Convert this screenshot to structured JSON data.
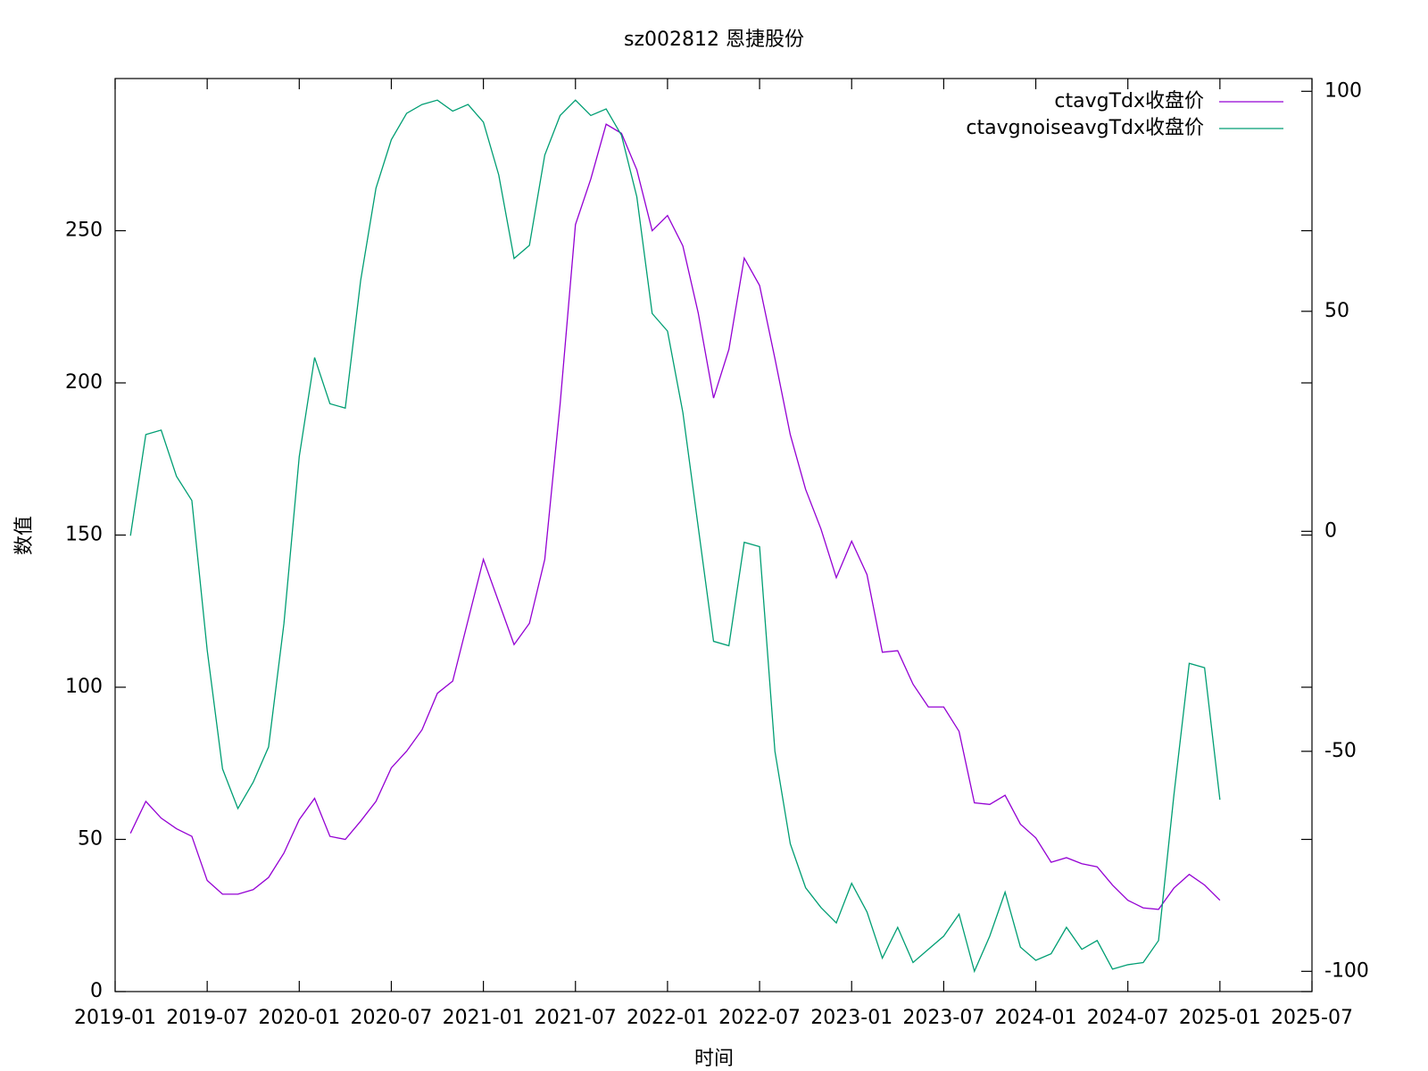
{
  "chart_data": {
    "type": "line",
    "title": "sz002812 恩捷股份",
    "xlabel": "时间",
    "ylabel": "数值",
    "x": [
      "2019-02",
      "2019-03",
      "2019-04",
      "2019-05",
      "2019-06",
      "2019-07",
      "2019-08",
      "2019-09",
      "2019-10",
      "2019-11",
      "2019-12",
      "2020-01",
      "2020-02",
      "2020-03",
      "2020-04",
      "2020-05",
      "2020-06",
      "2020-07",
      "2020-08",
      "2020-09",
      "2020-10",
      "2020-11",
      "2020-12",
      "2021-01",
      "2021-02",
      "2021-03",
      "2021-04",
      "2021-05",
      "2021-06",
      "2021-07",
      "2021-08",
      "2021-09",
      "2021-10",
      "2021-11",
      "2021-12",
      "2022-01",
      "2022-02",
      "2022-03",
      "2022-04",
      "2022-05",
      "2022-06",
      "2022-07",
      "2022-08",
      "2022-09",
      "2022-10",
      "2022-11",
      "2022-12",
      "2023-01",
      "2023-02",
      "2023-03",
      "2023-04",
      "2023-05",
      "2023-06",
      "2023-07",
      "2023-08",
      "2023-09",
      "2023-10",
      "2023-11",
      "2023-12",
      "2024-01",
      "2024-02",
      "2024-03",
      "2024-04",
      "2024-05",
      "2024-06",
      "2024-07",
      "2024-08",
      "2024-09",
      "2024-10",
      "2024-11",
      "2024-12",
      "2025-01"
    ],
    "xlim": [
      "2019-01",
      "2025-07"
    ],
    "xticks": [
      "2019-01",
      "2019-07",
      "2020-01",
      "2020-07",
      "2021-01",
      "2021-07",
      "2022-01",
      "2022-07",
      "2023-01",
      "2023-07",
      "2024-01",
      "2024-07",
      "2025-01",
      "2025-07"
    ],
    "ylim": [
      0,
      300
    ],
    "yticks": [
      0,
      50,
      100,
      150,
      200,
      250
    ],
    "y2lim": [
      -104.6,
      102.9
    ],
    "y2ticks": [
      -100,
      -50,
      0,
      50,
      100
    ],
    "legend": "top-right",
    "series": [
      {
        "name": "ctavgTdx收盘价",
        "color": "#9400d3",
        "values": [
          52,
          62.5,
          57,
          53.5,
          51,
          36.5,
          32,
          32,
          33.5,
          37.5,
          45.5,
          56.5,
          63.5,
          51,
          50,
          56,
          62.5,
          73.5,
          79,
          86,
          98,
          102,
          122,
          142,
          128,
          114,
          121,
          142,
          193,
          252,
          267,
          285,
          282,
          270,
          250,
          255,
          245,
          223,
          195,
          211,
          241,
          232,
          208,
          183,
          165,
          152,
          136,
          148,
          137,
          111.5,
          112,
          101,
          93.5,
          93.5,
          85.5,
          62,
          61.5,
          64.5,
          55,
          50.5,
          42.5,
          44,
          42,
          41,
          35,
          30,
          27.5,
          27,
          34,
          38.5,
          35,
          30
        ]
      },
      {
        "name": "ctavgnoiseavgTdx收盘价",
        "color": "#009e73",
        "axis": "y2",
        "values": [
          -1,
          22,
          23,
          12.5,
          7,
          -27,
          -54,
          -63,
          -57,
          -49,
          -21,
          17,
          39.5,
          29,
          28,
          57,
          78,
          89,
          95,
          97,
          98,
          95.5,
          97,
          93,
          81,
          62,
          65,
          85.5,
          94.5,
          98,
          94.5,
          96,
          90,
          76,
          49.5,
          45.5,
          27,
          1,
          -25,
          -26,
          -2.5,
          -3.5,
          -50,
          -71,
          -81,
          -85.5,
          -89,
          -80,
          -86.5,
          -97,
          -90,
          -98,
          -95,
          -92,
          -87,
          -100,
          -92,
          -82,
          -94.5,
          -97.5,
          -96,
          -90,
          -95,
          -93,
          -99.5,
          -98.5,
          -98,
          -93,
          -60,
          -30,
          -31,
          -61
        ]
      }
    ]
  }
}
